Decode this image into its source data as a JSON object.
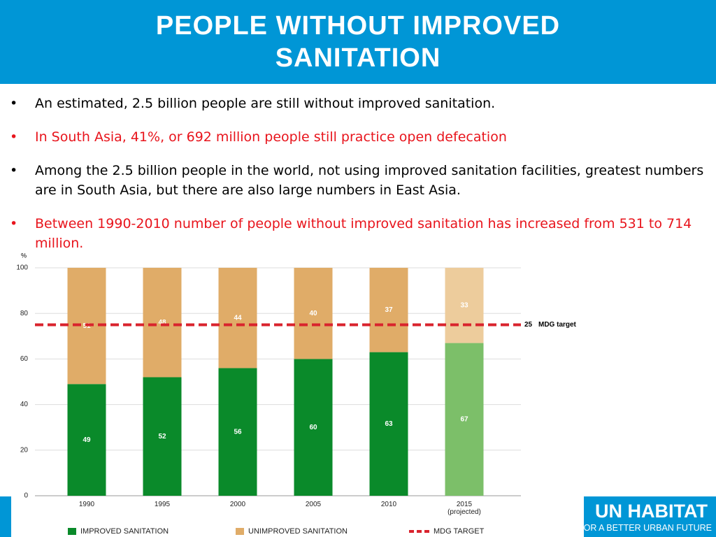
{
  "header": {
    "title": "PEOPLE WITHOUT IMPROVED SANITATION"
  },
  "bullets": [
    {
      "text": "An estimated, 2.5 billion people are still without improved sanitation.",
      "color": "#000000"
    },
    {
      "text": "In South Asia, 41%, or 692 million people still practice open defecation",
      "color": "#e8141c"
    },
    {
      "text": "Among the 2.5 billion people in the world, not using improved sanitation facilities, greatest numbers are in South Asia, but there are also large numbers in East Asia.",
      "color": "#000000"
    },
    {
      "text": "Between 1990-2010 number of people without improved sanitation has increased from 531 to 714 million.",
      "color": "#e8141c"
    }
  ],
  "chart_data": {
    "type": "stacked_bar",
    "ylabel": "%",
    "categories": [
      "1990",
      "1995",
      "2000",
      "2005",
      "2010",
      "2015 (projected)"
    ],
    "series": [
      {
        "name": "IMPROVED SANITATION",
        "color": "#0a8a2a",
        "colors": [
          "#0a8a2a",
          "#0a8a2a",
          "#0a8a2a",
          "#0a8a2a",
          "#0a8a2a",
          "#7cbf69"
        ],
        "values": [
          49,
          52,
          56,
          60,
          63,
          67
        ]
      },
      {
        "name": "UNIMPROVED SANITATION",
        "color": "#e0ac68",
        "colors": [
          "#e0ac68",
          "#e0ac68",
          "#e0ac68",
          "#e0ac68",
          "#e0ac68",
          "#edcc9c"
        ],
        "values": [
          51,
          48,
          44,
          40,
          37,
          33
        ]
      }
    ],
    "target": {
      "name": "MDG TARGET",
      "value": 25,
      "label": "MDG target",
      "color": "#d9232d"
    },
    "ylim": [
      0,
      100
    ],
    "yticks": [
      0,
      20,
      40,
      60,
      80,
      100
    ],
    "grid": true
  },
  "logo": {
    "name": "UN HABITAT",
    "tagline": "FOR A BETTER URBAN FUTURE"
  }
}
